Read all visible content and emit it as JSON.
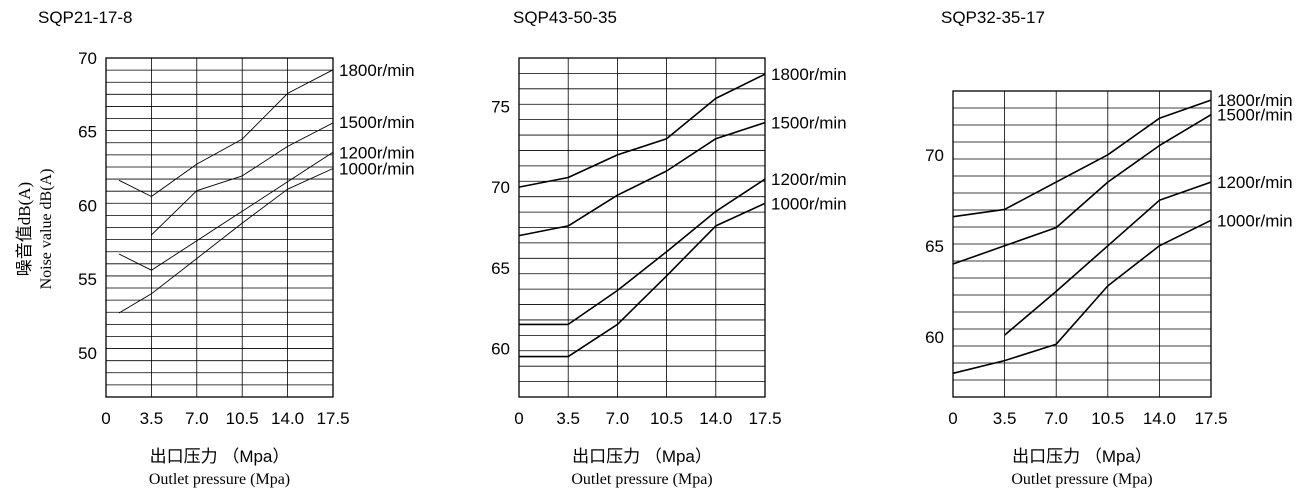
{
  "ylabel_cn": "噪音值dB(A)",
  "ylabel_en": "Noise value dB(A)",
  "chart_data": [
    {
      "type": "line",
      "title": "SQP21-17-8",
      "x_ticks": [
        "0",
        "3.5",
        "7.0",
        "10.5",
        "14.0",
        "17.5"
      ],
      "xlim": [
        0,
        17.5
      ],
      "ylim": [
        47,
        70
      ],
      "y_ticks": [
        50,
        55,
        60,
        65,
        70
      ],
      "grid": true,
      "xlabel_cn": "出口压力 （Mpa）",
      "xlabel_en": "Outlet pressure (Mpa)",
      "series": [
        {
          "name": "1800r/min",
          "x": [
            1,
            3.5,
            7.0,
            10.5,
            14.0,
            17.5
          ],
          "y": [
            61.7,
            60.6,
            62.8,
            64.5,
            67.6,
            69.2
          ]
        },
        {
          "name": "1500r/min",
          "x": [
            3.5,
            7.0,
            10.5,
            14.0,
            17.5
          ],
          "y": [
            58.0,
            61.0,
            62.0,
            64.0,
            65.6
          ]
        },
        {
          "name": "1200r/min",
          "x": [
            1,
            3.5,
            7.0,
            10.5,
            14.0,
            17.5
          ],
          "y": [
            56.7,
            55.6,
            57.6,
            59.6,
            61.6,
            63.6
          ]
        },
        {
          "name": "1000r/min",
          "x": [
            1,
            3.5,
            7.0,
            10.5,
            14.0,
            17.5
          ],
          "y": [
            52.7,
            54.0,
            56.4,
            58.8,
            61.1,
            62.5
          ]
        }
      ]
    },
    {
      "type": "line",
      "title": "SQP43-50-35",
      "x_ticks": [
        "0",
        "3.5",
        "7.0",
        "10.5",
        "14.0",
        "17.5"
      ],
      "xlim": [
        0,
        17.5
      ],
      "ylim": [
        57,
        78
      ],
      "y_ticks": [
        60,
        65,
        70,
        75
      ],
      "grid": true,
      "xlabel_cn": "出口压力 （Mpa）",
      "xlabel_en": "Outlet pressure (Mpa)",
      "series": [
        {
          "name": "1800r/min",
          "x": [
            0,
            3.5,
            7.0,
            10.5,
            14.0,
            17.5
          ],
          "y": [
            70.0,
            70.6,
            72.0,
            73.0,
            75.5,
            77.0
          ]
        },
        {
          "name": "1500r/min",
          "x": [
            0,
            3.5,
            7.0,
            10.5,
            14.0,
            17.5
          ],
          "y": [
            67.0,
            67.6,
            69.5,
            71.0,
            73.0,
            74.0
          ]
        },
        {
          "name": "1200r/min",
          "x": [
            0,
            3.5,
            7.0,
            10.5,
            14.0,
            17.5
          ],
          "y": [
            61.5,
            61.5,
            63.6,
            66.0,
            68.5,
            70.5
          ]
        },
        {
          "name": "1000r/min",
          "x": [
            0,
            3.5,
            7.0,
            10.5,
            14.0,
            17.5
          ],
          "y": [
            59.5,
            59.5,
            61.5,
            64.5,
            67.6,
            69.0
          ]
        }
      ]
    },
    {
      "type": "line",
      "title": "SQP32-35-17",
      "x_ticks": [
        "0",
        "3.5",
        "7.0",
        "10.5",
        "14.0",
        "17.5"
      ],
      "xlim": [
        0,
        17.5
      ],
      "ylim": [
        56.7,
        73.5
      ],
      "y_ticks": [
        60,
        65,
        70
      ],
      "grid": true,
      "xlabel_cn": "出口压力 （Mpa）",
      "xlabel_en": "Outlet pressure (Mpa)",
      "series": [
        {
          "name": "1800r/min",
          "x": [
            0,
            3.5,
            7.0,
            10.5,
            14.0,
            17.5
          ],
          "y": [
            66.6,
            67.0,
            68.5,
            70.0,
            72.0,
            73.0
          ]
        },
        {
          "name": "1500r/min",
          "x": [
            0,
            3.5,
            7.0,
            10.5,
            14.0,
            17.5
          ],
          "y": [
            64.0,
            65.0,
            66.0,
            68.5,
            70.5,
            72.2
          ]
        },
        {
          "name": "1200r/min",
          "x": [
            3.5,
            7.0,
            10.5,
            14.0,
            17.5
          ],
          "y": [
            60.1,
            62.5,
            65.0,
            67.5,
            68.5
          ]
        },
        {
          "name": "1000r/min",
          "x": [
            0,
            3.5,
            7.0,
            10.5,
            14.0,
            17.5
          ],
          "y": [
            58.0,
            58.7,
            59.6,
            62.8,
            65.0,
            66.4
          ]
        }
      ]
    }
  ]
}
